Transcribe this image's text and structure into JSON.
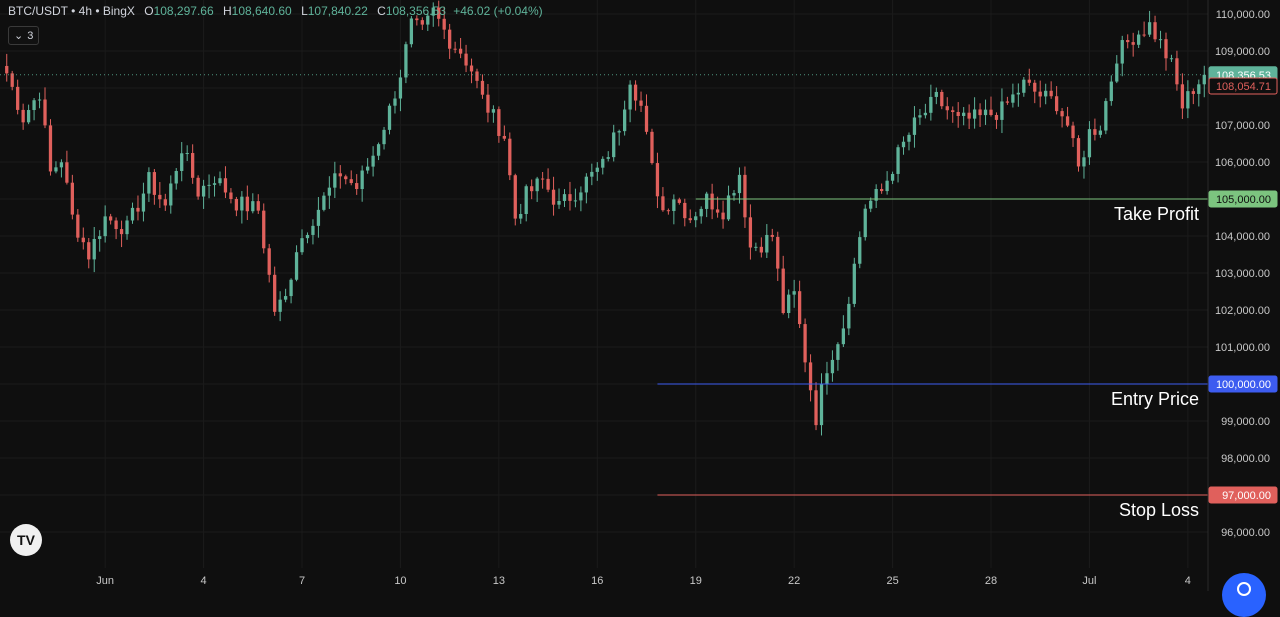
{
  "legend": {
    "symbol": "BTC/USDT • 4h • BingX",
    "o_label": "O",
    "o_value": "108,297.66",
    "h_label": "H",
    "h_value": "108,640.60",
    "l_label": "L",
    "l_value": "107,840.22",
    "c_label": "C",
    "c_value": "108,356.53",
    "change": "+46.02 (+0.04%)"
  },
  "indicator_chip": {
    "count": "3"
  },
  "colors": {
    "background": "#0f0f0f",
    "up": "#5fb39a",
    "down": "#e0605c",
    "grid": "#1b1b1b",
    "axis_text": "#c8c8c8",
    "take_profit": "#7cc47f",
    "entry": "#3d5cf0",
    "stop_loss": "#e0605c"
  },
  "chart_data": {
    "type": "candlestick",
    "symbol": "BTC/USDT",
    "timeframe": "4h",
    "exchange": "BingX",
    "y_axis": {
      "ticks": [
        110000,
        109000,
        108000,
        107000,
        106000,
        105000,
        104000,
        103000,
        102000,
        101000,
        100000,
        99000,
        98000,
        97000,
        96000
      ],
      "tick_labels": [
        "110,000.00",
        "109,000.00",
        "108,000.00",
        "107,000.00",
        "106,000.00",
        "105,000.00",
        "104,000.00",
        "103,000.00",
        "102,000.00",
        "101,000.00",
        "100,000.00",
        "99,000.00",
        "98,000.00",
        "97,000.00",
        "96,000.00"
      ],
      "range": [
        95500,
        110350
      ]
    },
    "x_axis": {
      "labels": [
        "Jun",
        "4",
        "7",
        "10",
        "13",
        "16",
        "19",
        "22",
        "25",
        "28",
        "Jul",
        "4"
      ],
      "label_candle_index": [
        18,
        36,
        54,
        72,
        90,
        108,
        126,
        144,
        162,
        180,
        198,
        216
      ]
    },
    "price_labels": {
      "last": {
        "value": 108356.53,
        "text": "108,356.53"
      },
      "prev": {
        "value": 108054.71,
        "text": "108,054.71"
      }
    },
    "levels": [
      {
        "name": "Take Profit",
        "value": 105000,
        "price_text": "105,000.00",
        "start_candle": 126
      },
      {
        "name": "Entry Price",
        "value": 100000,
        "price_text": "100,000.00",
        "start_candle": 119
      },
      {
        "name": "Stop Loss",
        "value": 97000,
        "price_text": "97,000.00",
        "start_candle": 119
      }
    ],
    "anchors": [
      [
        0,
        108400
      ],
      [
        3,
        107200
      ],
      [
        6,
        107900
      ],
      [
        8,
        105700
      ],
      [
        10,
        106100
      ],
      [
        12,
        104500
      ],
      [
        15,
        103500
      ],
      [
        18,
        104500
      ],
      [
        22,
        104200
      ],
      [
        26,
        105500
      ],
      [
        29,
        104800
      ],
      [
        32,
        106400
      ],
      [
        35,
        105200
      ],
      [
        38,
        105600
      ],
      [
        42,
        104900
      ],
      [
        46,
        104700
      ],
      [
        49,
        102000
      ],
      [
        51,
        102300
      ],
      [
        53,
        103700
      ],
      [
        56,
        104500
      ],
      [
        58,
        105000
      ],
      [
        61,
        105700
      ],
      [
        64,
        105300
      ],
      [
        67,
        106200
      ],
      [
        70,
        107400
      ],
      [
        72,
        108400
      ],
      [
        74,
        109700
      ],
      [
        76,
        109500
      ],
      [
        78,
        110050
      ],
      [
        81,
        109300
      ],
      [
        83,
        109000
      ],
      [
        85,
        108500
      ],
      [
        87,
        107700
      ],
      [
        89,
        107200
      ],
      [
        91,
        106700
      ],
      [
        93,
        104500
      ],
      [
        95,
        105100
      ],
      [
        98,
        105500
      ],
      [
        101,
        104800
      ],
      [
        104,
        105200
      ],
      [
        106,
        105500
      ],
      [
        109,
        105900
      ],
      [
        112,
        107000
      ],
      [
        114,
        108300
      ],
      [
        116,
        107500
      ],
      [
        118,
        105800
      ],
      [
        120,
        104700
      ],
      [
        122,
        105100
      ],
      [
        125,
        104500
      ],
      [
        128,
        105000
      ],
      [
        131,
        104700
      ],
      [
        134,
        105700
      ],
      [
        136,
        103700
      ],
      [
        138,
        103800
      ],
      [
        140,
        104000
      ],
      [
        142,
        102000
      ],
      [
        144,
        102400
      ],
      [
        146,
        100700
      ],
      [
        148,
        99100
      ],
      [
        150,
        100500
      ],
      [
        153,
        101600
      ],
      [
        155,
        103200
      ],
      [
        157,
        104800
      ],
      [
        160,
        105200
      ],
      [
        163,
        106200
      ],
      [
        166,
        107000
      ],
      [
        170,
        107700
      ],
      [
        174,
        107100
      ],
      [
        178,
        107200
      ],
      [
        182,
        107400
      ],
      [
        186,
        108100
      ],
      [
        189,
        107800
      ],
      [
        192,
        107600
      ],
      [
        194,
        107000
      ],
      [
        196,
        105800
      ],
      [
        198,
        106800
      ],
      [
        200,
        107000
      ],
      [
        203,
        108900
      ],
      [
        206,
        109400
      ],
      [
        209,
        109700
      ],
      [
        211,
        109200
      ],
      [
        213,
        108600
      ],
      [
        215,
        107500
      ],
      [
        217,
        108000
      ],
      [
        219,
        108356
      ]
    ],
    "n_candles": 220
  }
}
